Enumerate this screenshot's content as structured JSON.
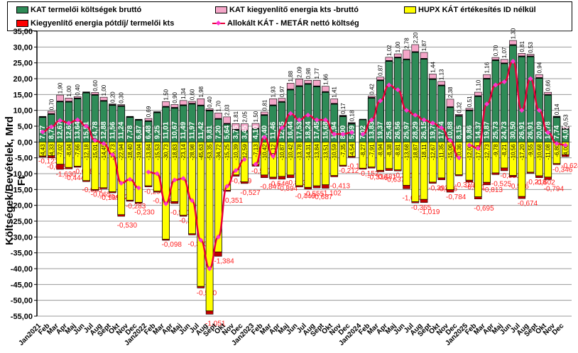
{
  "chart_data": {
    "type": "bar",
    "stacked": true,
    "title": "",
    "ylabel": "Költségek/Bevételek, Mrd Ft",
    "xlabel": "",
    "ylim": [
      -55,
      35
    ],
    "ytick_step": 5,
    "grid": true,
    "legend_position": "top",
    "legend": [
      {
        "key": "kat",
        "name": "KAT termelői költségek bruttó",
        "color": "#2e8b57",
        "kind": "bar"
      },
      {
        "key": "kieg",
        "name": "KAT kiegyenlítő energia kts -bruttó",
        "color": "#f4a6c8",
        "kind": "bar"
      },
      {
        "key": "hupx",
        "name": "HUPX KÁT értékesítés ID nélkül",
        "color": "#ffff00",
        "kind": "bar"
      },
      {
        "key": "potdij",
        "name": "Kiegyenlítő energia pótdíj/ termelői kts",
        "color": "#ff0000",
        "kind": "bar"
      },
      {
        "key": "netto",
        "name": "Allokált KÁT - METÁR nettó költség",
        "color": "#e8003a",
        "kind": "line"
      }
    ],
    "groups": [
      {
        "year_label": "Jan2021",
        "months": [
          "Jan2021",
          "Feb",
          "Mar",
          "Apr",
          "Maj",
          "Jun",
          "Jul",
          "Aug",
          "Sept",
          "Okt",
          "Nov",
          "Dec"
        ],
        "kat": [
          7.77,
          8.73,
          12.67,
          12.61,
          13.64,
          15.51,
          14.78,
          12.88,
          11.56,
          11.24,
          7.78,
          6.87
        ],
        "kieg": [
          0.05,
          0.7,
          1.9,
          1.0,
          0.4,
          0.05,
          0.6,
          1.0,
          0.2,
          0.3,
          0.05,
          0.05
        ],
        "hupx": [
          -4.43,
          -4.33,
          -7.02,
          -8.04,
          -7.66,
          -12.18,
          -15.01,
          -14.45,
          -15.73,
          -22.94,
          -18.4,
          -19.04
        ],
        "potdij": [
          -0.123,
          -0.665,
          -1.63,
          -0.444,
          -0.058,
          -0.025,
          -0.065,
          -0.199,
          -0.052,
          -0.53,
          -0.283,
          -0.23
        ],
        "netto": [
          3.2,
          4.8,
          6.8,
          6.0,
          7.0,
          5.0,
          0.5,
          -0.5,
          -4.0,
          -13.0,
          -11.8,
          -14.5
        ]
      },
      {
        "year_label": "Jan2022",
        "months": [
          "Jan2022",
          "Feb",
          "Mar",
          "Apr",
          "Maj",
          "Jun",
          "Jul",
          "Aug",
          "Sept",
          "Okt",
          "Nov",
          "Dec"
        ],
        "kat": [
          6.48,
          9.25,
          11.01,
          10.67,
          11.49,
          11.97,
          11.42,
          9.81,
          7.2,
          5.64,
          3.75,
          3.45
        ],
        "kieg": [
          0.69,
          0.05,
          1.5,
          0.9,
          1.34,
          0.6,
          1.98,
          0.4,
          1.7,
          2.03,
          1.81,
          2.05
        ],
        "hupx": [
          -13.84,
          -15.53,
          -30.73,
          -18.83,
          -23.14,
          -28.98,
          -45.63,
          -53.35,
          -34.72,
          -15.25,
          -10.39,
          -12.59
        ],
        "potdij": [
          -0.293,
          -0.198,
          -0.098,
          -0.591,
          -0.211,
          -0.383,
          -0.5,
          -1.051,
          -1.384,
          -0.351,
          -0.429,
          -0.527
        ],
        "netto": [
          -9.5,
          -10.0,
          -19.5,
          -12.0,
          -11.5,
          -18.5,
          -31.0,
          -40.0,
          -30.0,
          -14.0,
          -9.0,
          -5.5
        ]
      },
      {
        "year_label": "Jan2023",
        "months": [
          "Jan2023",
          "Feb",
          "Mar",
          "Apr",
          "Maj",
          "Jun",
          "Jul",
          "Aug",
          "Sept",
          "Okt",
          "Nov",
          "Dec"
        ],
        "kat": [
          4.1,
          8.4,
          11.46,
          12.55,
          16.44,
          17.53,
          18.24,
          17.45,
          15.68,
          11.94,
          8.0,
          5.69
        ],
        "kieg": [
          1.5,
          0.81,
          1.93,
          0.97,
          1.88,
          2.09,
          0.98,
          1.77,
          1.66,
          1.41,
          0.17,
          0.18
        ],
        "hupx": [
          -7.13,
          -10.42,
          -11.12,
          -10.87,
          -10.42,
          -13.78,
          -14.31,
          -13.84,
          -13.51,
          -10.59,
          -7.35,
          -4.54
        ],
        "potdij": [
          -0.527,
          -0.847,
          -0.546,
          -0.894,
          -0.883,
          -0.44,
          -0.555,
          -0.687,
          -1.102,
          -0.413,
          -0.212,
          -0.152
        ],
        "netto": [
          -7.0,
          1.5,
          -4.5,
          4.5,
          9.0,
          7.0,
          8.5,
          7.0,
          7.0,
          2.5,
          2.5,
          3.0
        ]
      },
      {
        "year_label": "Jan2024",
        "months": [
          "Jan2024",
          "Feb",
          "Mar",
          "Apr",
          "Maj",
          "Jun",
          "Jul",
          "Aug",
          "Sept",
          "Okt",
          "Nov",
          "Dec"
        ],
        "kat": [
          7.02,
          13.83,
          19.37,
          25.48,
          26.56,
          25.97,
          28.29,
          26.15,
          19.76,
          17.74,
          10.88,
          8.15
        ],
        "kieg": [
          0.0,
          0.42,
          0.87,
          1.02,
          1.0,
          2.78,
          2.2,
          1.87,
          1.44,
          1.13,
          2.38,
          0.32
        ],
        "hupx": [
          -8.27,
          -7.91,
          -8.94,
          -8.38,
          -8.81,
          -13.68,
          -18.87,
          -18.11,
          -12.67,
          -11.35,
          -15.06,
          -10.36
        ],
        "potdij": [
          -0.152,
          -0.336,
          -0.481,
          -0.637,
          -0.201,
          -1.09,
          -0.365,
          -1.019,
          -0.393,
          -0.606,
          -0.784,
          -0.319
        ],
        "netto": [
          2.5,
          7.0,
          13.0,
          18.0,
          16.5,
          10.0,
          8.5,
          7.0,
          6.0,
          4.5,
          0.5,
          -5.0
        ]
      },
      {
        "year_label": "Jan2025",
        "months": [
          "Jan2025",
          "Feb",
          "Mar",
          "Apr",
          "Maj",
          "Jun",
          "Jul",
          "Aug",
          "Sept",
          "Okt",
          "Nov",
          "Dec"
        ],
        "kat": [
          9.86,
          14.37,
          19.87,
          25.73,
          24.73,
          30.5,
          26.91,
          26.91,
          20.09,
          14.78,
          7.74,
          4.02
        ],
        "kieg": [
          0.51,
          1.1,
          1.16,
          0.7,
          1.07,
          1.3,
          0.81,
          0.53,
          0.94,
          0.66,
          0.14,
          0.53
        ],
        "hupx": [
          -12.06,
          -17.31,
          -12.73,
          -9.78,
          -8.21,
          -10.56,
          -17.2,
          -9.55,
          -10.68,
          -11.08,
          -6.8,
          -4.02
        ],
        "potdij": [
          -0.621,
          -0.695,
          -0.813,
          -0.525,
          -0.881,
          -0.506,
          -0.674,
          -0.218,
          -0.602,
          -0.794,
          -0.346,
          -0.624
        ],
        "netto": [
          -1.0,
          -2.0,
          12.0,
          18.0,
          19.0,
          25.5,
          10.0,
          20.0,
          10.0,
          3.0,
          -0.5,
          -1.0
        ]
      }
    ]
  },
  "yaxis": {
    "ticks": [
      "35,00",
      "30,00",
      "25,00",
      "20,00",
      "15,00",
      "10,00",
      "5,00",
      "0,00",
      "-5,00",
      "-10,00",
      "-15,00",
      "-20,00",
      "-25,00",
      "-30,00",
      "-35,00",
      "-40,00",
      "-45,00",
      "-50,00",
      "-55,00"
    ]
  }
}
